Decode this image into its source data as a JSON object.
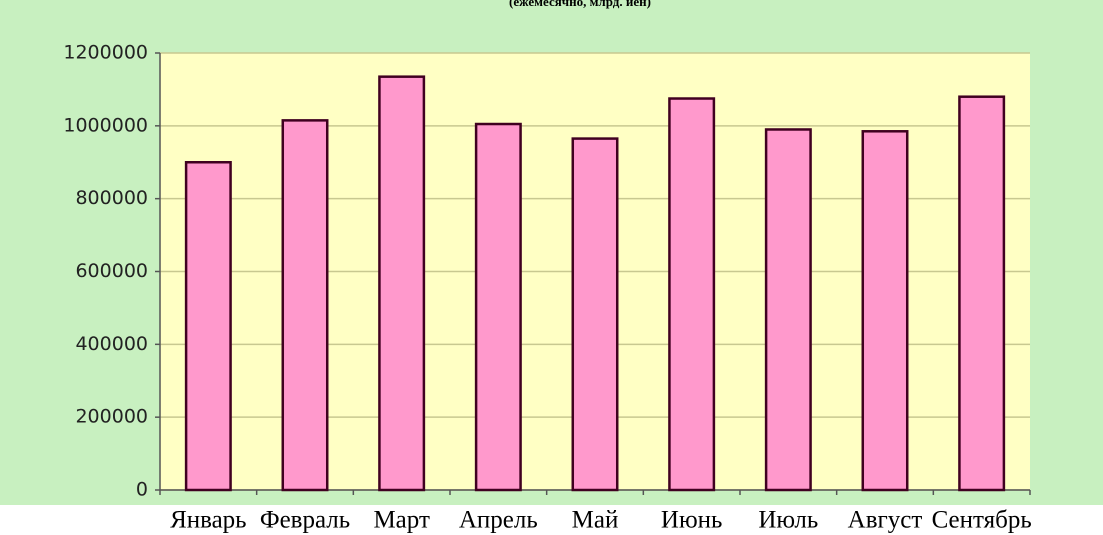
{
  "chart_data": {
    "type": "bar",
    "title": "(ежемесячно, млрд. иен)",
    "categories": [
      "Январь",
      "Февраль",
      "Март",
      "Апрель",
      "Май",
      "Июнь",
      "Июль",
      "Август",
      "Сентябрь"
    ],
    "values": [
      900000,
      1015000,
      1135000,
      1005000,
      965000,
      1075000,
      990000,
      985000,
      1080000
    ],
    "color": "#ff99cc",
    "ylim": [
      0,
      1200000
    ],
    "yticks": [
      0,
      200000,
      400000,
      600000,
      800000,
      1000000,
      1200000
    ],
    "grid": true
  }
}
